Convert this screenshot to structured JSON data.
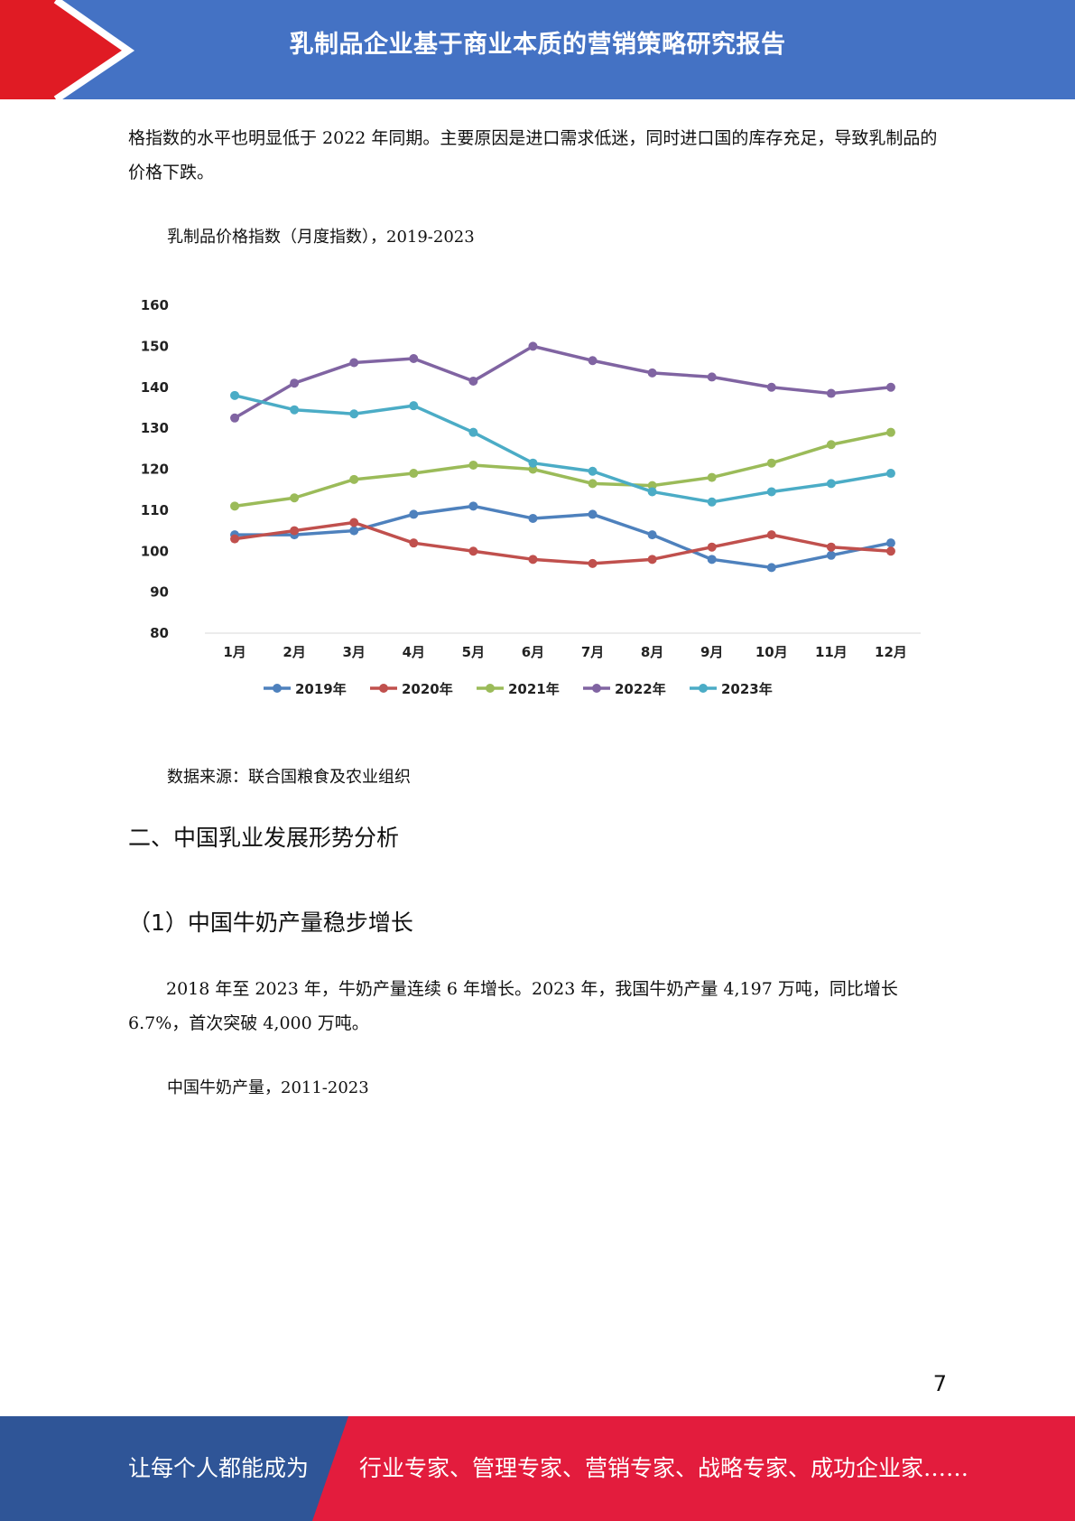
{
  "header": {
    "title": "乳制品企业基于商业本质的营销策略研究报告"
  },
  "body": {
    "para1": "格指数的水平也明显低于 2022 年同期。主要原因是进口需求低迷，同时进口国的库存充足，导致乳制品的价格下跌。",
    "chart_caption": "乳制品价格指数（月度指数），2019-2023",
    "source": "数据来源：联合国粮食及农业组织",
    "h2_section": "二、中国乳业发展形势分析",
    "h2_sub": "（1）中国牛奶产量稳步增长",
    "para2": "2018 年至 2023 年，牛奶产量连续 6 年增长。2023 年，我国牛奶产量 4,197 万吨，同比增长 6.7%，首次突破 4,000 万吨。",
    "caption2": "中国牛奶产量，2011-2023"
  },
  "chart_data": {
    "type": "line",
    "categories": [
      "1月",
      "2月",
      "3月",
      "4月",
      "5月",
      "6月",
      "7月",
      "8月",
      "9月",
      "10月",
      "11月",
      "12月"
    ],
    "ylim": [
      80,
      160
    ],
    "yticks": [
      80,
      90,
      100,
      110,
      120,
      130,
      140,
      150,
      160
    ],
    "legend_position": "bottom",
    "grid": false,
    "series": [
      {
        "name": "2019年",
        "color": "#4e81bd",
        "values": [
          104,
          104,
          105,
          109,
          111,
          108,
          109,
          104,
          98,
          96,
          99,
          102
        ]
      },
      {
        "name": "2020年",
        "color": "#c0504d",
        "values": [
          103,
          105,
          107,
          102,
          100,
          98,
          97,
          98,
          101,
          104,
          101,
          100
        ]
      },
      {
        "name": "2021年",
        "color": "#9bbb59",
        "values": [
          111,
          113,
          117.5,
          119,
          121,
          120,
          116.5,
          116,
          118,
          121.5,
          126,
          129
        ]
      },
      {
        "name": "2022年",
        "color": "#8064a2",
        "values": [
          132.5,
          141,
          146,
          147,
          141.5,
          150,
          146.5,
          143.5,
          142.5,
          140,
          138.5,
          140
        ]
      },
      {
        "name": "2023年",
        "color": "#4bacc6",
        "values": [
          138,
          134.5,
          133.5,
          135.5,
          129,
          121.5,
          119.5,
          114.5,
          112,
          114.5,
          116.5,
          119
        ]
      }
    ]
  },
  "page_number": "7",
  "footer": {
    "left": "让每个人都能成为",
    "right": "行业专家、管理专家、营销专家、战略专家、成功企业家……"
  }
}
